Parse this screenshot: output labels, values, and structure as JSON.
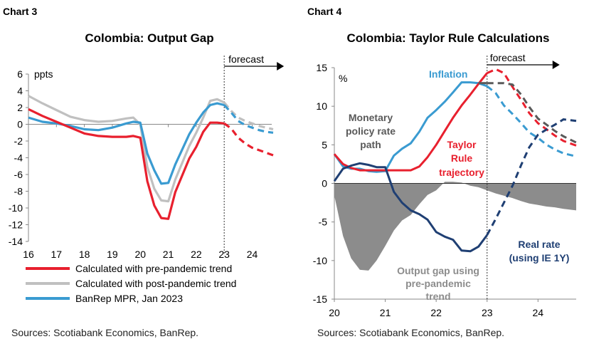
{
  "chart_data": [
    {
      "label": "Chart 3",
      "title": "Colombia: Output Gap",
      "type": "line",
      "ylabel": "ppts",
      "ylim": [
        -14,
        6
      ],
      "yticks": [
        "6",
        "4",
        "2",
        "0",
        "-2",
        "-4",
        "-6",
        "-8",
        "-10",
        "-12",
        "-14"
      ],
      "xlim": [
        16,
        24.7
      ],
      "xticks": [
        "16",
        "17",
        "18",
        "19",
        "20",
        "21",
        "22",
        "23",
        "24"
      ],
      "forecast_start": 23,
      "forecast_label": "forecast",
      "series": [
        {
          "name": "Calculated with pre-pandemic trend",
          "color": "#e8202e",
          "x": [
            16,
            16.5,
            17,
            17.5,
            18,
            18.5,
            19,
            19.5,
            19.75,
            20,
            20.25,
            20.5,
            20.75,
            21,
            21.25,
            21.5,
            21.75,
            22,
            22.25,
            22.5,
            22.75,
            23,
            23.25,
            23.5,
            23.75,
            24,
            24.25,
            24.5,
            24.75
          ],
          "y": [
            1.8,
            1.0,
            0.3,
            -0.4,
            -1.1,
            -1.4,
            -1.5,
            -1.5,
            -1.4,
            -1.6,
            -6.8,
            -9.7,
            -11.2,
            -11.3,
            -8.1,
            -6.1,
            -4.1,
            -2.7,
            -0.9,
            0.2,
            0.2,
            0.1,
            -0.5,
            -1.6,
            -2.3,
            -2.8,
            -3.1,
            -3.4,
            -3.7
          ]
        },
        {
          "name": "Calculated with post-pandemic trend",
          "color": "#c0c0c0",
          "x": [
            16,
            16.5,
            17,
            17.5,
            18,
            18.5,
            19,
            19.5,
            19.75,
            20,
            20.25,
            20.5,
            20.75,
            21,
            21.25,
            21.5,
            21.75,
            22,
            22.25,
            22.5,
            22.75,
            23,
            23.25,
            23.5,
            23.75,
            24,
            24.25,
            24.5,
            24.75
          ],
          "y": [
            3.4,
            2.5,
            1.7,
            0.9,
            0.5,
            0.3,
            0.4,
            0.7,
            0.8,
            0.0,
            -5.1,
            -7.7,
            -9.1,
            -9.2,
            -6.6,
            -4.6,
            -2.6,
            -1.0,
            0.8,
            2.8,
            3.0,
            2.6,
            1.6,
            0.8,
            0.4,
            0.1,
            -0.2,
            -0.4,
            -0.6
          ]
        },
        {
          "name": "BanRep MPR, Jan 2023",
          "color": "#3a9bd1",
          "x": [
            16,
            16.5,
            17,
            17.5,
            18,
            18.5,
            19,
            19.5,
            19.75,
            20,
            20.25,
            20.5,
            20.75,
            21,
            21.25,
            21.5,
            21.75,
            22,
            22.25,
            22.5,
            22.75,
            23,
            23.25,
            23.5,
            23.75,
            24,
            24.25,
            24.5,
            24.75
          ],
          "y": [
            0.8,
            0.3,
            0.1,
            -0.2,
            -0.6,
            -0.7,
            -0.4,
            0.1,
            0.3,
            0.2,
            -3.5,
            -5.5,
            -7.1,
            -7.0,
            -4.8,
            -3.0,
            -1.2,
            0.2,
            1.4,
            2.3,
            2.5,
            2.3,
            1.4,
            0.4,
            -0.1,
            -0.4,
            -0.7,
            -0.9,
            -1.0
          ]
        }
      ],
      "source": "Sources: Scotiabank Economics, BanRep."
    },
    {
      "label": "Chart 4",
      "title": "Colombia: Taylor Rule Calculations",
      "type": "line",
      "ylabel": "%",
      "ylim": [
        -15,
        15
      ],
      "yticks": [
        "15",
        "10",
        "5",
        "0",
        "-5",
        "-10",
        "-15"
      ],
      "xlim": [
        20,
        24.75
      ],
      "xticks": [
        "20",
        "21",
        "22",
        "23",
        "24"
      ],
      "forecast_start": 23,
      "forecast_label": "forecast",
      "area": {
        "name": "Output gap using pre-pandemic trend",
        "color": "#8c8c8c",
        "x": [
          20,
          20.17,
          20.33,
          20.5,
          20.67,
          20.83,
          21,
          21.17,
          21.33,
          21.5,
          21.67,
          21.83,
          22,
          22.17,
          22.33,
          22.5,
          22.67,
          22.83,
          23,
          23.17,
          23.33,
          23.5,
          23.67,
          23.83,
          24,
          24.17,
          24.33,
          24.5,
          24.75
        ],
        "y": [
          -1.6,
          -6.8,
          -9.7,
          -11.2,
          -11.3,
          -10.0,
          -8.1,
          -6.1,
          -4.8,
          -4.1,
          -2.7,
          -1.5,
          -0.9,
          0.2,
          0.2,
          0.1,
          -0.3,
          -0.5,
          -0.9,
          -1.3,
          -1.6,
          -1.9,
          -2.3,
          -2.6,
          -2.8,
          -3.0,
          -3.1,
          -3.3,
          -3.5
        ]
      },
      "series": [
        {
          "name": "Inflation",
          "color": "#3a9bd1",
          "x": [
            20,
            20.17,
            20.33,
            20.5,
            20.67,
            20.83,
            21,
            21.17,
            21.33,
            21.5,
            21.67,
            21.83,
            22,
            22.17,
            22.33,
            22.5,
            22.67,
            22.83,
            23,
            23.17,
            23.33,
            23.5,
            23.67,
            23.83,
            24,
            24.17,
            24.33,
            24.5,
            24.75
          ],
          "y": [
            3.8,
            2.2,
            1.9,
            1.9,
            1.6,
            1.5,
            1.6,
            3.6,
            4.5,
            5.2,
            6.7,
            8.5,
            9.5,
            10.6,
            11.8,
            13.1,
            13.1,
            13.0,
            12.6,
            11.7,
            10.1,
            9.0,
            7.8,
            6.6,
            5.9,
            5.0,
            4.4,
            3.9,
            3.5
          ]
        },
        {
          "name": "Taylor Rule trajectory",
          "color": "#e8202e",
          "x": [
            20,
            20.17,
            20.33,
            20.5,
            20.67,
            20.83,
            21,
            21.17,
            21.33,
            21.5,
            21.67,
            21.83,
            22,
            22.17,
            22.33,
            22.5,
            22.67,
            22.83,
            23,
            23.17,
            23.33,
            23.5,
            23.67,
            23.83,
            24,
            24.17,
            24.33,
            24.5,
            24.75
          ],
          "y": [
            3.8,
            2.5,
            2.0,
            1.7,
            1.7,
            1.7,
            1.7,
            1.7,
            1.7,
            1.7,
            2.2,
            3.4,
            5.0,
            6.8,
            8.5,
            10.1,
            11.5,
            12.9,
            14.3,
            14.8,
            14.3,
            12.5,
            10.8,
            9.1,
            7.8,
            7.0,
            6.2,
            5.5,
            4.9
          ]
        },
        {
          "name": "Monetary policy rate path",
          "color": "#595959",
          "x": [
            22.83,
            23,
            23.17,
            23.33,
            23.5,
            23.67,
            23.83,
            24,
            24.17,
            24.33,
            24.5,
            24.75
          ],
          "y": [
            13.0,
            13.0,
            13.0,
            13.0,
            12.8,
            11.5,
            9.9,
            8.4,
            7.6,
            6.8,
            6.1,
            5.3
          ]
        },
        {
          "name": "Real rate (using IE 1Y)",
          "color": "#1f3f73",
          "x": [
            20,
            20.17,
            20.33,
            20.5,
            20.67,
            20.83,
            21,
            21.17,
            21.33,
            21.5,
            21.67,
            21.83,
            22,
            22.17,
            22.33,
            22.5,
            22.67,
            22.83,
            23,
            23.17,
            23.33,
            23.5,
            23.67,
            23.83,
            24,
            24.17,
            24.33,
            24.5,
            24.75
          ],
          "y": [
            0.3,
            1.9,
            2.3,
            2.6,
            2.4,
            2.1,
            2.1,
            -1.1,
            -2.5,
            -3.5,
            -4.0,
            -4.7,
            -6.3,
            -6.9,
            -7.3,
            -8.7,
            -8.8,
            -8.2,
            -6.7,
            -4.6,
            -2.5,
            -0.3,
            2.4,
            4.7,
            6.3,
            7.0,
            7.6,
            8.3,
            8.1
          ]
        }
      ],
      "annotations": {
        "inflation": "Inflation",
        "policy_rate_line1": "Monetary",
        "policy_rate_line2": "policy rate",
        "policy_rate_line3": "path",
        "taylor_line1": "Taylor",
        "taylor_line2": "Rule",
        "taylor_line3": "trajectory",
        "real_rate_line1": "Real rate",
        "real_rate_line2": "(using IE 1Y)",
        "gap_line1": "Output gap using",
        "gap_line2": "pre-pandemic",
        "gap_line3": "trend"
      },
      "source": "Sources: Scotiabank Economics, BanRep."
    }
  ]
}
